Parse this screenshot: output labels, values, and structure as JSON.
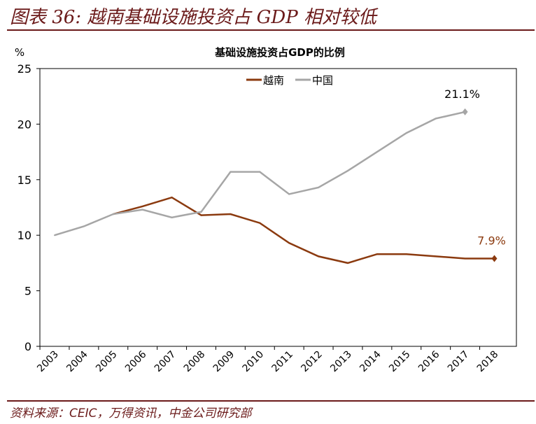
{
  "header": {
    "title": "图表 36: 越南基础设施投资占 GDP 相对较低"
  },
  "footer": {
    "source": "资料来源：CEIC，万得资讯，中金公司研究部"
  },
  "chart_data": {
    "type": "line",
    "title": "基础设施投资占GDP的比例",
    "ylabel": "%",
    "ylim": [
      0,
      25
    ],
    "yticks": [
      "0",
      "5",
      "10",
      "15",
      "20",
      "25"
    ],
    "categories": [
      "2003",
      "2004",
      "2005",
      "2006",
      "2007",
      "2008",
      "2009",
      "2010",
      "2011",
      "2012",
      "2013",
      "2014",
      "2015",
      "2016",
      "2017",
      "2018"
    ],
    "series": [
      {
        "name": "越南",
        "color": "#8b3a0f",
        "values": [
          null,
          null,
          11.9,
          12.6,
          13.4,
          11.8,
          11.9,
          11.1,
          9.3,
          8.1,
          7.5,
          8.3,
          8.3,
          8.1,
          7.9,
          7.9
        ],
        "end_label": "7.9%"
      },
      {
        "name": "中国",
        "color": "#a6a6a6",
        "values": [
          10.0,
          10.8,
          11.9,
          12.3,
          11.6,
          12.1,
          15.7,
          15.7,
          13.7,
          14.3,
          15.8,
          17.5,
          19.2,
          20.5,
          21.1,
          null
        ],
        "end_label": "21.1%"
      }
    ],
    "legend": "top-center"
  }
}
